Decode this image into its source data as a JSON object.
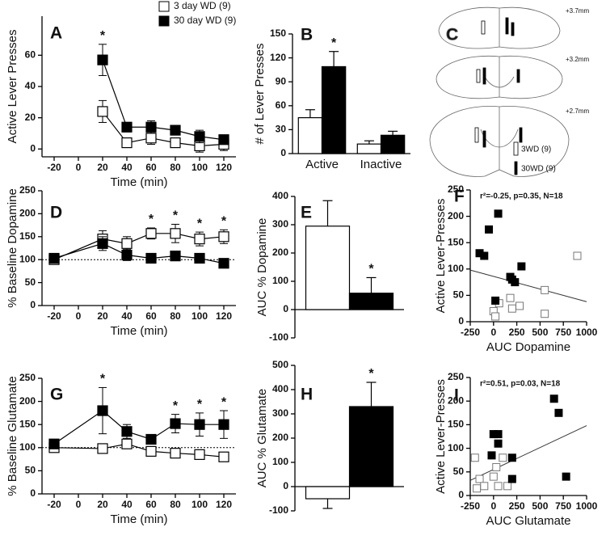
{
  "chart_data": [
    {
      "label": "A",
      "type": "line",
      "xlabel": "Time (min)",
      "ylabel": "Active Lever Presses",
      "x": [
        20,
        40,
        60,
        80,
        100,
        120
      ],
      "xlim": [
        -30,
        130
      ],
      "xticks": [
        -20,
        0,
        20,
        40,
        60,
        80,
        100,
        120
      ],
      "ylim": [
        -5,
        85
      ],
      "yticks": [
        0,
        20,
        40,
        60
      ],
      "legend": "top-right",
      "marker_label": "*",
      "series": [
        {
          "name": "3 day WD (9)",
          "color": "#ffffff",
          "values": [
            24,
            4,
            7,
            4,
            2,
            3
          ],
          "errors": [
            7,
            3,
            4,
            3,
            4,
            4
          ],
          "marked": [
            false,
            false,
            false,
            false,
            false,
            false
          ]
        },
        {
          "name": "30 day WD (9)",
          "color": "#000000",
          "values": [
            57,
            14,
            14,
            12,
            8,
            6
          ],
          "errors": [
            10,
            3,
            4,
            3,
            4,
            3
          ],
          "marked": [
            true,
            false,
            false,
            false,
            false,
            false
          ]
        }
      ]
    },
    {
      "label": "B",
      "type": "bar",
      "ylabel": "# of Lever Presses",
      "categories": [
        "Active",
        "Inactive"
      ],
      "ylim": [
        0,
        150
      ],
      "yticks": [
        0,
        30,
        60,
        90,
        120,
        150
      ],
      "marker_label": "*",
      "series": [
        {
          "color": "#ffffff",
          "values": [
            45,
            12
          ],
          "errors": [
            10,
            4
          ],
          "marked": [
            false,
            false
          ]
        },
        {
          "color": "#000000",
          "values": [
            109,
            23
          ],
          "errors": [
            19,
            5
          ],
          "marked": [
            true,
            false
          ]
        }
      ]
    },
    {
      "label": "D",
      "type": "line",
      "xlabel": "Time (min)",
      "ylabel": "% Baseline Dopamine",
      "x": [
        -20,
        20,
        40,
        60,
        80,
        100,
        120
      ],
      "xlim": [
        -30,
        130
      ],
      "xticks": [
        -20,
        0,
        20,
        40,
        60,
        80,
        100,
        120
      ],
      "ylim": [
        0,
        250
      ],
      "yticks": [
        0,
        50,
        100,
        150,
        200,
        250
      ],
      "reference_line": 100,
      "marker_label": "*",
      "series": [
        {
          "color": "#ffffff",
          "values": [
            100,
            145,
            135,
            157,
            157,
            145,
            150
          ],
          "errors": [
            10,
            18,
            15,
            12,
            20,
            15,
            15
          ],
          "marked": [
            false,
            false,
            false,
            true,
            true,
            true,
            true
          ]
        },
        {
          "color": "#000000",
          "values": [
            103,
            135,
            110,
            103,
            108,
            103,
            92
          ],
          "errors": [
            8,
            15,
            12,
            6,
            8,
            8,
            8
          ],
          "marked": [
            false,
            false,
            false,
            false,
            false,
            false,
            false
          ]
        }
      ]
    },
    {
      "label": "E",
      "type": "bar",
      "ylabel": "AUC % Dopamine",
      "categories": [
        null
      ],
      "ylim": [
        -100,
        400
      ],
      "yticks": [
        -100,
        0,
        100,
        200,
        300,
        400
      ],
      "marker_label": "*",
      "series": [
        {
          "color": "#ffffff",
          "values": [
            295
          ],
          "errors": [
            90
          ],
          "marked": [
            false
          ]
        },
        {
          "color": "#000000",
          "values": [
            58
          ],
          "errors": [
            55
          ],
          "marked": [
            true
          ]
        }
      ]
    },
    {
      "label": "F",
      "type": "scatter",
      "xlabel": "AUC Dopamine",
      "ylabel": "Active Lever-Presses",
      "annotation": "r²=-0.25, p=0.35, N=18",
      "xlim": [
        -250,
        1000
      ],
      "xticks": [
        -250,
        0,
        250,
        500,
        750,
        1000
      ],
      "ylim": [
        0,
        250
      ],
      "yticks": [
        0,
        50,
        100,
        150,
        200,
        250
      ],
      "series": [
        {
          "color": "#ffffff",
          "x": [
            0,
            60,
            20,
            180,
            200,
            280,
            550,
            550,
            900
          ],
          "values": [
            20,
            35,
            10,
            45,
            25,
            30,
            60,
            15,
            125
          ]
        },
        {
          "color": "#000000",
          "x": [
            -150,
            -50,
            50,
            20,
            180,
            200,
            230,
            300,
            -100
          ],
          "values": [
            130,
            175,
            205,
            40,
            85,
            80,
            75,
            105,
            125
          ]
        }
      ],
      "fit": {
        "x": [
          -250,
          1000
        ],
        "values": [
          98,
          38
        ]
      }
    },
    {
      "label": "G",
      "type": "line",
      "xlabel": "Time (min)",
      "ylabel": "% Baseline Glutamate",
      "x": [
        -20,
        20,
        40,
        60,
        80,
        100,
        120
      ],
      "xlim": [
        -30,
        130
      ],
      "xticks": [
        -20,
        0,
        20,
        40,
        60,
        80,
        100,
        120
      ],
      "ylim": [
        0,
        250
      ],
      "yticks": [
        0,
        50,
        100,
        150,
        200,
        250
      ],
      "reference_line": 100,
      "marker_label": "*",
      "series": [
        {
          "color": "#ffffff",
          "values": [
            100,
            98,
            108,
            92,
            88,
            85,
            80
          ],
          "errors": [
            8,
            10,
            10,
            8,
            8,
            8,
            10
          ],
          "marked": [
            false,
            false,
            false,
            false,
            false,
            false,
            false
          ]
        },
        {
          "color": "#000000",
          "values": [
            108,
            180,
            135,
            118,
            152,
            150,
            150
          ],
          "errors": [
            6,
            50,
            15,
            8,
            20,
            25,
            30
          ],
          "marked": [
            false,
            true,
            false,
            false,
            true,
            true,
            true
          ]
        }
      ]
    },
    {
      "label": "H",
      "type": "bar",
      "ylabel": "AUC % Glutamate",
      "categories": [
        null
      ],
      "ylim": [
        -100,
        500
      ],
      "yticks": [
        -100,
        0,
        100,
        200,
        300,
        400,
        500
      ],
      "marker_label": "*",
      "series": [
        {
          "color": "#ffffff",
          "values": [
            -50
          ],
          "errors": [
            40
          ],
          "marked": [
            false
          ]
        },
        {
          "color": "#000000",
          "values": [
            330
          ],
          "errors": [
            100
          ],
          "marked": [
            true
          ]
        }
      ]
    },
    {
      "label": "I",
      "type": "scatter",
      "xlabel": "AUC Glutamate",
      "ylabel": "Active Lever-Presses",
      "annotation": "r²=0.51, p=0.03, N=18",
      "xlim": [
        -250,
        1000
      ],
      "xticks": [
        -250,
        0,
        250,
        500,
        750,
        1000
      ],
      "ylim": [
        0,
        250
      ],
      "yticks": [
        0,
        50,
        100,
        150,
        200,
        250
      ],
      "series": [
        {
          "color": "#ffffff",
          "x": [
            -200,
            -150,
            -100,
            -180,
            0,
            30,
            50,
            150,
            100
          ],
          "values": [
            80,
            35,
            20,
            15,
            40,
            60,
            20,
            20,
            80
          ]
        },
        {
          "color": "#000000",
          "x": [
            650,
            700,
            780,
            0,
            50,
            50,
            200,
            -20,
            200
          ],
          "values": [
            205,
            175,
            40,
            130,
            130,
            110,
            80,
            85,
            35
          ]
        }
      ],
      "fit": {
        "x": [
          -250,
          1000
        ],
        "values": [
          32,
          148
        ]
      }
    }
  ],
  "diagram": {
    "label": "C",
    "sections": [
      "+3.7mm",
      "+3.2mm",
      "+2.7mm"
    ],
    "legend": [
      "3WD (9)",
      "30WD (9)"
    ]
  }
}
